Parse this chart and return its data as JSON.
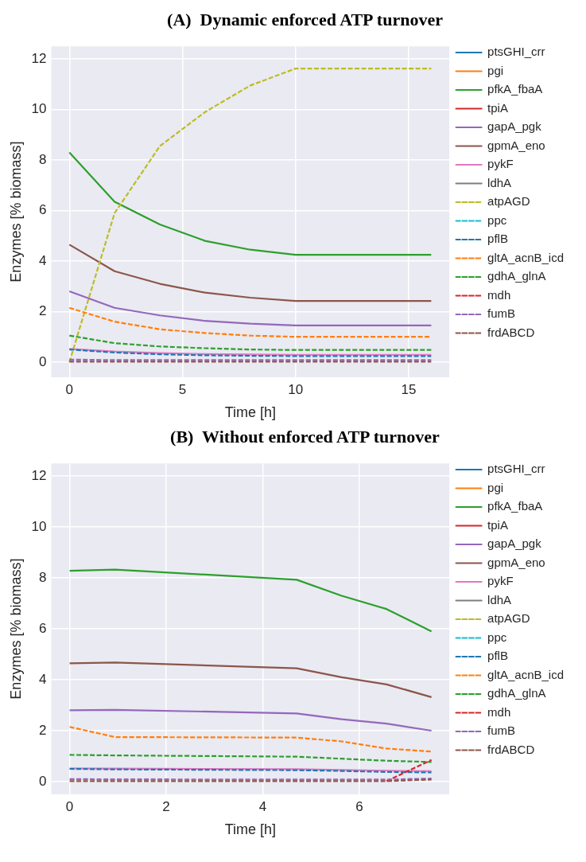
{
  "chart_data": [
    {
      "type": "line",
      "title": "(A)  Dynamic enforced ATP turnover",
      "xlabel": "Time [h]",
      "ylabel": "Enzymes [% biomass]",
      "x": [
        0,
        2,
        4,
        6,
        8,
        10,
        12,
        14,
        16
      ],
      "xlim": [
        -0.8,
        16.8
      ],
      "ylim": [
        -0.6,
        12.5
      ],
      "xticks": [
        0,
        5,
        10,
        15
      ],
      "yticks": [
        0,
        2,
        4,
        6,
        8,
        10,
        12
      ],
      "grid": true,
      "legend": "right",
      "marker": "none",
      "series": [
        {
          "name": "ptsGHI_crr",
          "color": "#1f77b4",
          "line_style": "solid",
          "values": [
            null,
            null,
            null,
            null,
            null,
            null,
            null,
            null,
            null
          ]
        },
        {
          "name": "pgi",
          "color": "#ff7f0e",
          "line_style": "solid",
          "values": [
            null,
            null,
            null,
            null,
            null,
            null,
            null,
            null,
            null
          ]
        },
        {
          "name": "pfkA_fbaA",
          "color": "#2ca02c",
          "line_style": "solid",
          "values": [
            8.3,
            6.35,
            5.45,
            4.8,
            4.45,
            4.25,
            4.25,
            4.25,
            4.25
          ]
        },
        {
          "name": "tpiA",
          "color": "#d62728",
          "line_style": "solid",
          "values": [
            null,
            null,
            null,
            null,
            null,
            null,
            null,
            null,
            null
          ]
        },
        {
          "name": "gapA_pgk",
          "color": "#9467bd",
          "line_style": "solid",
          "values": [
            2.8,
            2.15,
            1.85,
            1.63,
            1.52,
            1.45,
            1.45,
            1.45,
            1.45
          ]
        },
        {
          "name": "gpmA_eno",
          "color": "#8c564b",
          "line_style": "solid",
          "values": [
            4.65,
            3.6,
            3.1,
            2.75,
            2.55,
            2.42,
            2.42,
            2.42,
            2.42
          ]
        },
        {
          "name": "pykF",
          "color": "#e377c2",
          "line_style": "solid",
          "values": [
            0.52,
            0.42,
            0.36,
            0.32,
            0.3,
            0.29,
            0.29,
            0.29,
            0.29
          ]
        },
        {
          "name": "ldhA",
          "color": "#7f7f7f",
          "line_style": "solid",
          "values": [
            null,
            null,
            null,
            null,
            null,
            null,
            null,
            null,
            null
          ]
        },
        {
          "name": "atpAGD",
          "color": "#bcbd22",
          "line_style": "dashed",
          "values": [
            0,
            5.9,
            8.55,
            9.9,
            10.95,
            11.62,
            11.62,
            11.62,
            11.62
          ]
        },
        {
          "name": "ppc",
          "color": "#17becf",
          "line_style": "dashed",
          "values": [
            null,
            null,
            null,
            null,
            null,
            null,
            null,
            null,
            null
          ]
        },
        {
          "name": "pflB",
          "color": "#1f77b4",
          "line_style": "dashed",
          "values": [
            0.5,
            0.38,
            0.31,
            0.27,
            0.25,
            0.24,
            0.24,
            0.24,
            0.24
          ]
        },
        {
          "name": "gltA_acnB_icd",
          "color": "#ff7f0e",
          "line_style": "dashed",
          "values": [
            2.15,
            1.6,
            1.3,
            1.15,
            1.05,
            1.0,
            1.0,
            1.0,
            1.0
          ]
        },
        {
          "name": "gdhA_glnA",
          "color": "#2ca02c",
          "line_style": "dashed",
          "values": [
            1.05,
            0.75,
            0.62,
            0.55,
            0.5,
            0.48,
            0.48,
            0.48,
            0.48
          ]
        },
        {
          "name": "mdh",
          "color": "#d62728",
          "line_style": "dashed",
          "values": [
            null,
            null,
            null,
            null,
            null,
            null,
            null,
            null,
            null
          ]
        },
        {
          "name": "fumB",
          "color": "#9467bd",
          "line_style": "dashed",
          "values": [
            0.1,
            0.08,
            0.08,
            0.08,
            0.08,
            0.08,
            0.08,
            0.08,
            0.08
          ]
        },
        {
          "name": "frdABCD",
          "color": "#8c564b",
          "line_style": "dashed",
          "values": [
            0.02,
            0.02,
            0.02,
            0.02,
            0.02,
            0.02,
            0.02,
            0.02,
            0.02
          ]
        }
      ]
    },
    {
      "type": "line",
      "title": "(B)  Without enforced ATP turnover",
      "xlabel": "Time [h]",
      "ylabel": "Enzymes [% biomass]",
      "x": [
        0,
        0.94,
        4.7,
        5.63,
        6.56,
        7.49
      ],
      "xlim": [
        -0.38,
        7.86
      ],
      "ylim": [
        -0.5,
        12.5
      ],
      "xticks": [
        0,
        2,
        4,
        6
      ],
      "yticks": [
        0,
        2,
        4,
        6,
        8,
        10,
        12
      ],
      "grid": true,
      "legend": "right",
      "marker": "none",
      "series": [
        {
          "name": "ptsGHI_crr",
          "color": "#1f77b4",
          "line_style": "solid",
          "values": [
            null,
            null,
            null,
            null,
            null,
            null
          ]
        },
        {
          "name": "pgi",
          "color": "#ff7f0e",
          "line_style": "solid",
          "values": [
            null,
            null,
            null,
            null,
            null,
            null
          ]
        },
        {
          "name": "pfkA_fbaA",
          "color": "#2ca02c",
          "line_style": "solid",
          "values": [
            8.28,
            8.33,
            7.93,
            7.3,
            6.78,
            5.9
          ]
        },
        {
          "name": "tpiA",
          "color": "#d62728",
          "line_style": "solid",
          "values": [
            null,
            null,
            null,
            null,
            null,
            null
          ]
        },
        {
          "name": "gapA_pgk",
          "color": "#9467bd",
          "line_style": "solid",
          "values": [
            2.8,
            2.82,
            2.68,
            2.45,
            2.28,
            2.0
          ]
        },
        {
          "name": "gpmA_eno",
          "color": "#8c564b",
          "line_style": "solid",
          "values": [
            4.65,
            4.68,
            4.45,
            4.1,
            3.82,
            3.32
          ]
        },
        {
          "name": "pykF",
          "color": "#e377c2",
          "line_style": "solid",
          "values": [
            0.52,
            0.51,
            0.49,
            0.46,
            0.43,
            0.41
          ]
        },
        {
          "name": "ldhA",
          "color": "#7f7f7f",
          "line_style": "solid",
          "values": [
            null,
            null,
            null,
            null,
            null,
            null
          ]
        },
        {
          "name": "atpAGD",
          "color": "#bcbd22",
          "line_style": "dashed",
          "values": [
            null,
            null,
            null,
            null,
            null,
            null
          ]
        },
        {
          "name": "ppc",
          "color": "#17becf",
          "line_style": "dashed",
          "values": [
            null,
            null,
            null,
            null,
            null,
            null
          ]
        },
        {
          "name": "pflB",
          "color": "#1f77b4",
          "line_style": "dashed",
          "values": [
            0.5,
            0.48,
            0.45,
            0.42,
            0.38,
            0.36
          ]
        },
        {
          "name": "gltA_acnB_icd",
          "color": "#ff7f0e",
          "line_style": "dashed",
          "values": [
            2.15,
            1.75,
            1.73,
            1.58,
            1.3,
            1.18
          ]
        },
        {
          "name": "gdhA_glnA",
          "color": "#2ca02c",
          "line_style": "dashed",
          "values": [
            1.05,
            1.03,
            0.98,
            0.9,
            0.82,
            0.77
          ]
        },
        {
          "name": "mdh",
          "color": "#d62728",
          "line_style": "dashed",
          "values": [
            null,
            null,
            null,
            null,
            0.02,
            0.85
          ]
        },
        {
          "name": "fumB",
          "color": "#9467bd",
          "line_style": "dashed",
          "values": [
            0.1,
            0.09,
            0.08,
            0.08,
            0.08,
            0.12
          ]
        },
        {
          "name": "frdABCD",
          "color": "#8c564b",
          "line_style": "dashed",
          "values": [
            0.02,
            0.02,
            0.02,
            0.02,
            0.02,
            0.08
          ]
        }
      ]
    }
  ]
}
